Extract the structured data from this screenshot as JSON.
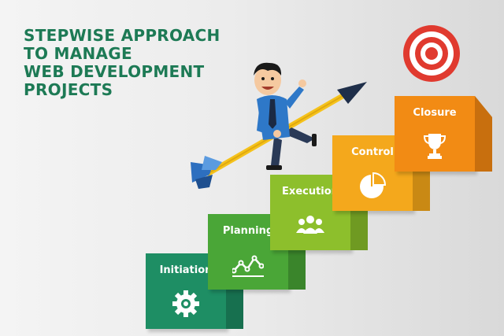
{
  "title_lines": [
    "STEPWISE APPROACH",
    "TO MANAGE",
    "WEB DEVELOPMENT",
    "PROJECTS"
  ],
  "steps": [
    {
      "label": "Initiation",
      "icon": "gear-icon",
      "color": "#1e8e64",
      "shade": "#17704f"
    },
    {
      "label": "Planning",
      "icon": "line-graph-icon",
      "color": "#4aa637",
      "shade": "#3a852b"
    },
    {
      "label": "Execution",
      "icon": "team-icon",
      "color": "#8dbf2c",
      "shade": "#6f9a22"
    },
    {
      "label": "Control",
      "icon": "pie-chart-icon",
      "color": "#f4a81c",
      "shade": "#c98914"
    },
    {
      "label": "Closure",
      "icon": "trophy-icon",
      "color": "#f28b14",
      "shade": "#c86f0e"
    }
  ],
  "colors": {
    "title": "#1d7a55",
    "target_red": "#e03a2f",
    "arrow_yellow": "#f5c21b"
  }
}
